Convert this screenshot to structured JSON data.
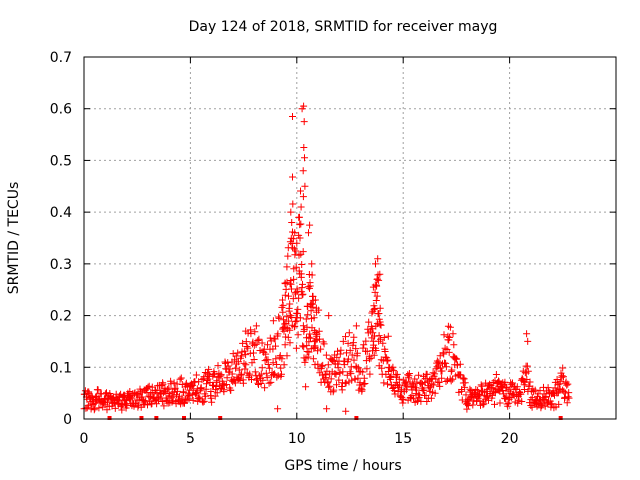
{
  "chart_data": {
    "type": "scatter",
    "title": "Day 124 of 2018, SRMTID for receiver mayg",
    "xlabel": "GPS time / hours",
    "ylabel": "SRMTID / TECUs",
    "xlim": [
      0,
      25
    ],
    "ylim": [
      0,
      0.7
    ],
    "x_ticks": [
      "0",
      "5",
      "10",
      "15",
      "20"
    ],
    "x_tick_values": [
      0,
      5,
      10,
      15,
      20
    ],
    "y_ticks": [
      "0",
      "0.1",
      "0.2",
      "0.3",
      "0.4",
      "0.5",
      "0.6",
      "0.7"
    ],
    "y_tick_values": [
      0,
      0.1,
      0.2,
      0.3,
      0.4,
      0.5,
      0.6,
      0.7
    ],
    "grid": true,
    "marker": "+",
    "series": [
      {
        "name": "SRMTID",
        "color": "#ff0000",
        "profile_hours": [
          0,
          1,
          2,
          3,
          4,
          5,
          6,
          7,
          7.5,
          8,
          8.5,
          9,
          9.3,
          9.5,
          9.7,
          9.8,
          9.9,
          10.0,
          10.1,
          10.2,
          10.3,
          10.4,
          10.5,
          10.7,
          11.0,
          11.5,
          12.0,
          12.5,
          13.0,
          13.3,
          13.6,
          13.8,
          14.0,
          14.3,
          15,
          16,
          16.5,
          17,
          17.3,
          17.6,
          18,
          18.5,
          19,
          19.5,
          20,
          20.5,
          20.8,
          21,
          21.5,
          22,
          22.2,
          22.5,
          22.8
        ],
        "profile_srmtid": [
          0.04,
          0.035,
          0.035,
          0.045,
          0.05,
          0.055,
          0.065,
          0.09,
          0.11,
          0.12,
          0.1,
          0.12,
          0.15,
          0.2,
          0.27,
          0.3,
          0.25,
          0.2,
          0.3,
          0.33,
          0.22,
          0.1,
          0.2,
          0.22,
          0.15,
          0.08,
          0.1,
          0.12,
          0.09,
          0.12,
          0.16,
          0.21,
          0.12,
          0.08,
          0.06,
          0.06,
          0.07,
          0.12,
          0.13,
          0.09,
          0.04,
          0.04,
          0.05,
          0.06,
          0.05,
          0.05,
          0.08,
          0.04,
          0.04,
          0.04,
          0.05,
          0.07,
          0.05
        ],
        "spikes": [
          [
            9.8,
            0.585
          ],
          [
            9.8,
            0.468
          ],
          [
            9.72,
            0.4
          ],
          [
            9.76,
            0.38
          ],
          [
            9.9,
            0.36
          ],
          [
            10.0,
            0.34
          ],
          [
            10.15,
            0.35
          ],
          [
            10.2,
            0.41
          ],
          [
            10.25,
            0.6
          ],
          [
            10.32,
            0.605
          ],
          [
            10.35,
            0.575
          ],
          [
            10.33,
            0.525
          ],
          [
            10.36,
            0.505
          ],
          [
            10.3,
            0.48
          ],
          [
            10.38,
            0.45
          ],
          [
            10.31,
            0.43
          ],
          [
            10.6,
            0.375
          ],
          [
            10.55,
            0.36
          ],
          [
            10.7,
            0.3
          ],
          [
            13.8,
            0.31
          ],
          [
            13.7,
            0.3
          ],
          [
            13.9,
            0.28
          ],
          [
            13.6,
            0.255
          ],
          [
            17.1,
            0.16
          ],
          [
            20.8,
            0.165
          ],
          [
            20.85,
            0.15
          ],
          [
            8.1,
            0.18
          ],
          [
            8.9,
            0.19
          ],
          [
            7.6,
            0.17
          ],
          [
            11.5,
            0.2
          ],
          [
            12.8,
            0.18
          ],
          [
            14.3,
            0.16
          ],
          [
            11.4,
            0.02
          ],
          [
            12.3,
            0.015
          ],
          [
            9.1,
            0.02
          ]
        ],
        "dips": [
          [
            1.2,
            0.0
          ],
          [
            2.7,
            0.0
          ],
          [
            3.4,
            0.0
          ],
          [
            4.7,
            0.0
          ],
          [
            6.4,
            0.0
          ],
          [
            12.8,
            0.0
          ],
          [
            22.4,
            0.0
          ]
        ]
      }
    ]
  }
}
